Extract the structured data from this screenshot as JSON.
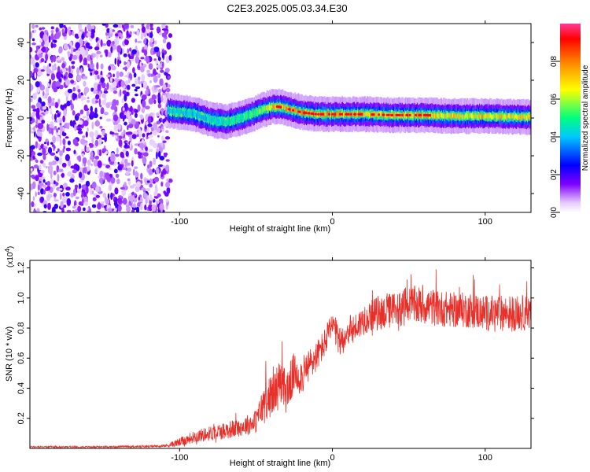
{
  "title": "C2E3.2025.005.03.34.E30",
  "chart_data": [
    {
      "type": "heatmap",
      "title": "C2E3.2025.005.03.34.E30",
      "xlabel": "Height of straight line (km)",
      "ylabel": "Frequency (Hz)",
      "xlim": [
        -198,
        130
      ],
      "ylim": [
        -50,
        50
      ],
      "xticks": [
        -100,
        0,
        100
      ],
      "yticks": [
        -40,
        -20,
        0,
        20,
        40
      ],
      "colorbar": {
        "label": "Normalized spectral amplitude",
        "range": [
          0,
          1
        ],
        "ticks": [
          0.0,
          0.2,
          0.4,
          0.6,
          0.8
        ],
        "colormap": [
          "#ffffff",
          "#e6ccff",
          "#8000ff",
          "#0000ff",
          "#00c8ff",
          "#00ff80",
          "#ffff00",
          "#ff8000",
          "#ff0000",
          "#ff3c96"
        ]
      },
      "noise_region": {
        "x_start": -198,
        "x_end": -108,
        "freq_range": [
          -50,
          50
        ]
      },
      "signal_track": {
        "x": [
          -108,
          -90,
          -80,
          -70,
          -60,
          -50,
          -40,
          -35,
          -30,
          -20,
          -10,
          0,
          20,
          40,
          60,
          80,
          100,
          130
        ],
        "center_freq": [
          4,
          2,
          -1,
          -2,
          0,
          3,
          6,
          6,
          5,
          3,
          2,
          2,
          2,
          1.5,
          1.5,
          1,
          1,
          0.5
        ],
        "peak_amplitude": [
          0.55,
          0.5,
          0.55,
          0.6,
          0.6,
          0.7,
          0.85,
          0.9,
          0.95,
          1.0,
          0.95,
          0.95,
          0.9,
          0.9,
          0.9,
          0.85,
          0.85,
          0.85
        ]
      }
    },
    {
      "type": "line",
      "xlabel": "Height of straight line (km)",
      "ylabel": "SNR (10 * v/v)",
      "y_multiplier": "(x10",
      "y_multiplier_exp": "4",
      "y_multiplier_close": ")",
      "xlim": [
        -198,
        130
      ],
      "ylim": [
        0,
        1.25
      ],
      "xticks": [
        -100,
        0,
        100
      ],
      "yticks": [
        0.2,
        0.4,
        0.6,
        0.8,
        1.0,
        1.2
      ],
      "line_color": "#e8302a",
      "series": [
        {
          "x": [
            -198,
            -150,
            -110,
            -100,
            -90,
            -80,
            -70,
            -60,
            -50,
            -45,
            -40,
            -35,
            -30,
            -25,
            -20,
            -15,
            -10,
            -5,
            0,
            5,
            10,
            15,
            20,
            25,
            30,
            40,
            50,
            60,
            70,
            80,
            90,
            100,
            110,
            120,
            130
          ],
          "values": [
            0.01,
            0.01,
            0.015,
            0.04,
            0.08,
            0.1,
            0.12,
            0.14,
            0.18,
            0.3,
            0.35,
            0.42,
            0.38,
            0.5,
            0.48,
            0.55,
            0.62,
            0.7,
            0.82,
            0.7,
            0.78,
            0.8,
            0.85,
            0.88,
            0.9,
            0.92,
            0.95,
            0.95,
            0.93,
            0.92,
            0.92,
            0.9,
            0.9,
            0.9,
            0.9
          ],
          "noise": [
            0.005,
            0.005,
            0.008,
            0.03,
            0.04,
            0.05,
            0.06,
            0.06,
            0.08,
            0.12,
            0.14,
            0.16,
            0.15,
            0.14,
            0.12,
            0.12,
            0.1,
            0.1,
            0.1,
            0.1,
            0.1,
            0.1,
            0.1,
            0.1,
            0.12,
            0.12,
            0.13,
            0.13,
            0.12,
            0.12,
            0.12,
            0.12,
            0.12,
            0.12,
            0.12
          ]
        }
      ]
    }
  ]
}
